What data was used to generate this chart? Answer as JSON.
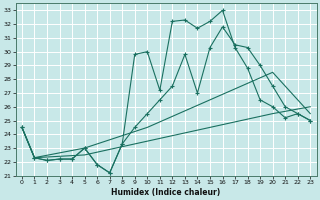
{
  "xlabel": "Humidex (Indice chaleur)",
  "bg_color": "#c8e8e8",
  "grid_color": "#ffffff",
  "line_color": "#1a7060",
  "xlim": [
    -0.5,
    23.5
  ],
  "ylim": [
    21,
    33.5
  ],
  "xticks": [
    0,
    1,
    2,
    3,
    4,
    5,
    6,
    7,
    8,
    9,
    10,
    11,
    12,
    13,
    14,
    15,
    16,
    17,
    18,
    19,
    20,
    21,
    22,
    23
  ],
  "yticks": [
    21,
    22,
    23,
    24,
    25,
    26,
    27,
    28,
    29,
    30,
    31,
    32,
    33
  ],
  "lines": [
    {
      "x": [
        0,
        1,
        2,
        3,
        4,
        5,
        6,
        7,
        8,
        9,
        10,
        11,
        12,
        13,
        14,
        15,
        16,
        17,
        18,
        19,
        20,
        21,
        22,
        23
      ],
      "y": [
        24.5,
        22.3,
        22.1,
        22.2,
        22.2,
        23.0,
        21.8,
        21.2,
        23.3,
        29.8,
        30.0,
        27.2,
        32.2,
        32.3,
        31.7,
        32.2,
        33.0,
        30.3,
        28.8,
        26.5,
        26.0,
        25.2,
        25.5,
        25.0
      ],
      "marker": "+"
    },
    {
      "x": [
        0,
        1,
        2,
        3,
        4,
        5,
        6,
        7,
        8,
        9,
        10,
        11,
        12,
        13,
        14,
        15,
        16,
        17,
        18,
        19,
        20,
        21,
        22,
        23
      ],
      "y": [
        24.5,
        22.3,
        22.1,
        22.2,
        22.2,
        23.0,
        21.8,
        21.2,
        23.3,
        24.5,
        25.5,
        26.5,
        27.5,
        29.8,
        27.0,
        30.3,
        31.8,
        30.5,
        30.3,
        29.0,
        27.5,
        26.0,
        25.5,
        25.0
      ],
      "marker": "+"
    },
    {
      "x": [
        0,
        1,
        5,
        10,
        15,
        20,
        23
      ],
      "y": [
        24.5,
        22.3,
        22.5,
        23.5,
        24.5,
        25.5,
        26.0
      ],
      "marker": null
    },
    {
      "x": [
        0,
        1,
        5,
        10,
        15,
        20,
        23
      ],
      "y": [
        24.5,
        22.3,
        23.0,
        24.5,
        26.5,
        28.5,
        25.5
      ],
      "marker": null
    }
  ]
}
